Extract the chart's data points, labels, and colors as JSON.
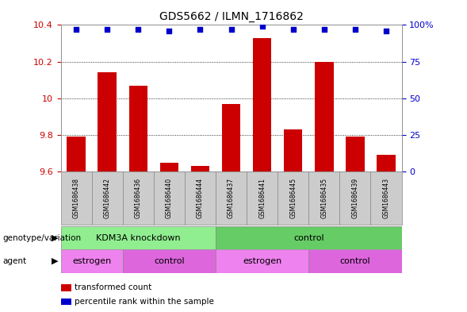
{
  "title": "GDS5662 / ILMN_1716862",
  "samples": [
    "GSM1686438",
    "GSM1686442",
    "GSM1686436",
    "GSM1686440",
    "GSM1686444",
    "GSM1686437",
    "GSM1686441",
    "GSM1686445",
    "GSM1686435",
    "GSM1686439",
    "GSM1686443"
  ],
  "red_values": [
    9.79,
    10.14,
    10.07,
    9.65,
    9.63,
    9.97,
    10.33,
    9.83,
    10.2,
    9.79,
    9.69
  ],
  "blue_values": [
    97,
    97,
    97,
    96,
    97,
    97,
    99,
    97,
    97,
    97,
    96
  ],
  "ylim_left": [
    9.6,
    10.4
  ],
  "ylim_right": [
    0,
    100
  ],
  "yticks_left": [
    9.6,
    9.8,
    10.0,
    10.2,
    10.4
  ],
  "yticks_right": [
    0,
    25,
    50,
    75,
    100
  ],
  "ytick_labels_left": [
    "9.6",
    "9.8",
    "10",
    "10.2",
    "10.4"
  ],
  "ytick_labels_right": [
    "0",
    "25",
    "50",
    "75",
    "100%"
  ],
  "grid_lines": [
    9.8,
    10.0,
    10.2
  ],
  "bar_color": "#cc0000",
  "dot_color": "#0000cc",
  "bar_width": 0.6,
  "genotype_groups": [
    {
      "label": "KDM3A knockdown",
      "start": 0,
      "end": 5,
      "color": "#90ee90"
    },
    {
      "label": "control",
      "start": 5,
      "end": 11,
      "color": "#66cc66"
    }
  ],
  "agent_groups": [
    {
      "label": "estrogen",
      "start": 0,
      "end": 2,
      "color": "#ee82ee"
    },
    {
      "label": "control",
      "start": 2,
      "end": 5,
      "color": "#dd66dd"
    },
    {
      "label": "estrogen",
      "start": 5,
      "end": 8,
      "color": "#ee82ee"
    },
    {
      "label": "control",
      "start": 8,
      "end": 11,
      "color": "#dd66dd"
    }
  ],
  "legend_items": [
    {
      "label": "transformed count",
      "color": "#cc0000"
    },
    {
      "label": "percentile rank within the sample",
      "color": "#0000cc"
    }
  ],
  "background_color": "#ffffff",
  "plot_bg_color": "#ffffff",
  "tick_color_left": "#cc0000",
  "tick_color_right": "#0000cc",
  "genotype_label": "genotype/variation",
  "agent_label": "agent",
  "sample_bg_color": "#cccccc"
}
